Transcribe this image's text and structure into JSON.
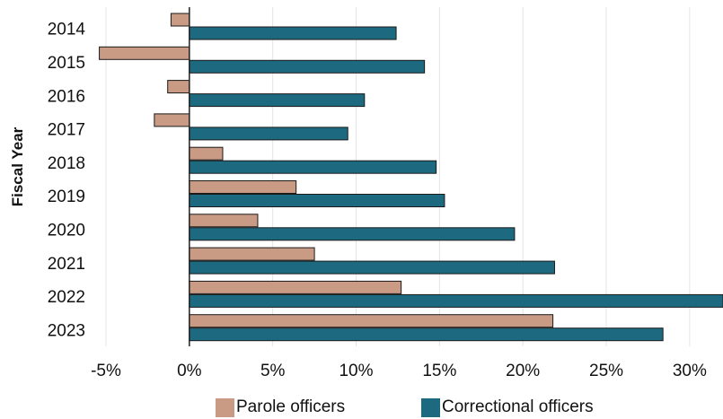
{
  "chart_data": {
    "type": "bar",
    "orientation": "horizontal",
    "title": "",
    "xlabel": "",
    "ylabel": "Fiscal Year",
    "categories": [
      "2014",
      "2015",
      "2016",
      "2017",
      "2018",
      "2019",
      "2020",
      "2021",
      "2022",
      "2023"
    ],
    "series": [
      {
        "name": "Parole officers",
        "color": "#c99a84",
        "values": [
          -1.1,
          -5.4,
          -1.3,
          -2.1,
          2.0,
          6.4,
          4.1,
          7.5,
          12.7,
          21.8
        ]
      },
      {
        "name": "Correctional officers",
        "color": "#1d6a80",
        "values": [
          12.4,
          14.1,
          10.5,
          9.5,
          14.8,
          15.3,
          19.5,
          21.9,
          32.0,
          28.4
        ]
      }
    ],
    "xlim": [
      -5,
      32
    ],
    "xticks": [
      -5,
      0,
      5,
      10,
      15,
      20,
      25,
      30
    ],
    "xtick_labels": [
      "-5%",
      "0%",
      "5%",
      "10%",
      "15%",
      "20%",
      "25%",
      "30%"
    ],
    "grid": "vertical",
    "legend": "bottom"
  }
}
